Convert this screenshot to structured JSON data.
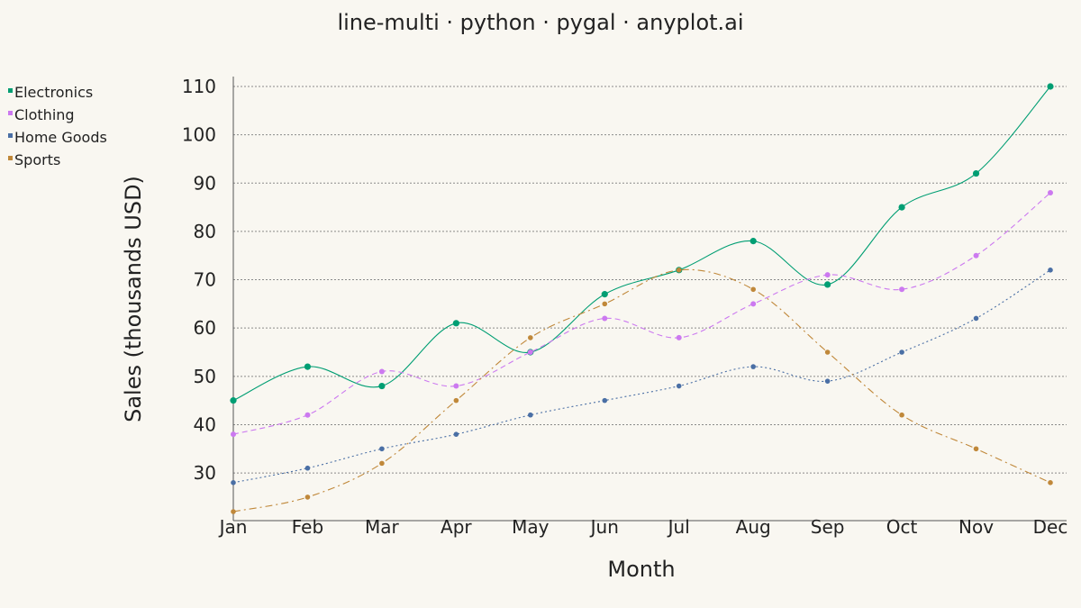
{
  "chart_data": {
    "type": "line",
    "title": "line-multi · python · pygal · anyplot.ai",
    "xlabel": "Month",
    "ylabel": "Sales (thousands USD)",
    "categories": [
      "Jan",
      "Feb",
      "Mar",
      "Apr",
      "May",
      "Jun",
      "Jul",
      "Aug",
      "Sep",
      "Oct",
      "Nov",
      "Dec"
    ],
    "ylim": [
      20,
      112
    ],
    "yticks": [
      30,
      40,
      50,
      60,
      70,
      80,
      90,
      100,
      110
    ],
    "grid": true,
    "legend_position": "top-left",
    "series": [
      {
        "name": "Electronics",
        "color": "#009e73",
        "line_style": "solid",
        "values": [
          45,
          52,
          48,
          61,
          55,
          67,
          72,
          78,
          69,
          85,
          92,
          110
        ]
      },
      {
        "name": "Clothing",
        "color": "#cc79f0",
        "line_style": "dashed",
        "values": [
          38,
          42,
          51,
          48,
          55,
          62,
          58,
          65,
          71,
          68,
          75,
          88
        ]
      },
      {
        "name": "Home Goods",
        "color": "#4a6fa5",
        "line_style": "dotted",
        "values": [
          28,
          31,
          35,
          38,
          42,
          45,
          48,
          52,
          49,
          55,
          62,
          72
        ]
      },
      {
        "name": "Sports",
        "color": "#c0883a",
        "line_style": "dashdot",
        "values": [
          22,
          25,
          32,
          45,
          58,
          65,
          72,
          68,
          55,
          42,
          35,
          28
        ]
      }
    ]
  }
}
